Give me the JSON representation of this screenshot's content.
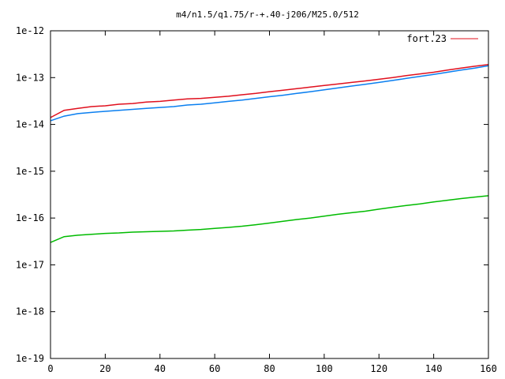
{
  "chart_data": {
    "type": "line",
    "title": "m4/n1.5/q1.75/r-+.40-j206/M25.0/512",
    "xlabel": "",
    "ylabel": "",
    "xlim": [
      0,
      160
    ],
    "ylim": [
      1e-19,
      1e-12
    ],
    "y_scale": "log",
    "grid": false,
    "legend_position": "top-right",
    "x_ticks": [
      0,
      20,
      40,
      60,
      80,
      100,
      120,
      140,
      160
    ],
    "x_tick_labels": [
      "0",
      "20",
      "40",
      "60",
      "80",
      "100",
      "120",
      "140",
      "160"
    ],
    "y_ticks": [
      1e-19,
      1e-18,
      1e-17,
      1e-16,
      1e-15,
      1e-14,
      1e-13,
      1e-12
    ],
    "y_tick_labels": [
      "1e-19",
      "1e-18",
      "1e-17",
      "1e-16",
      "1e-15",
      "1e-14",
      "1e-13",
      "1e-12"
    ],
    "series": [
      {
        "name": "fort.23",
        "color": "#e0101e",
        "legend": true,
        "x": [
          0,
          5,
          10,
          15,
          20,
          25,
          30,
          35,
          40,
          45,
          50,
          55,
          60,
          65,
          70,
          75,
          80,
          85,
          90,
          95,
          100,
          105,
          110,
          115,
          120,
          125,
          130,
          135,
          140,
          145,
          150,
          155,
          160
        ],
        "y": [
          1.4e-14,
          2e-14,
          2.2e-14,
          2.4e-14,
          2.5e-14,
          2.7e-14,
          2.8e-14,
          3e-14,
          3.1e-14,
          3.3e-14,
          3.5e-14,
          3.6e-14,
          3.8e-14,
          4e-14,
          4.3e-14,
          4.6e-14,
          5e-14,
          5.4e-14,
          5.8e-14,
          6.3e-14,
          6.8e-14,
          7.3e-14,
          7.9e-14,
          8.5e-14,
          9.2e-14,
          1e-13,
          1.1e-13,
          1.2e-13,
          1.3e-13,
          1.45e-13,
          1.6e-13,
          1.75e-13,
          1.9e-13
        ]
      },
      {
        "name": "",
        "color": "#0a7ff0",
        "legend": false,
        "x": [
          0,
          5,
          10,
          15,
          20,
          25,
          30,
          35,
          40,
          45,
          50,
          55,
          60,
          65,
          70,
          75,
          80,
          85,
          90,
          95,
          100,
          105,
          110,
          115,
          120,
          125,
          130,
          135,
          140,
          145,
          150,
          155,
          160
        ],
        "y": [
          1.2e-14,
          1.5e-14,
          1.7e-14,
          1.8e-14,
          1.9e-14,
          2e-14,
          2.1e-14,
          2.2e-14,
          2.3e-14,
          2.4e-14,
          2.6e-14,
          2.7e-14,
          2.9e-14,
          3.1e-14,
          3.3e-14,
          3.6e-14,
          3.9e-14,
          4.2e-14,
          4.6e-14,
          5e-14,
          5.5e-14,
          6e-14,
          6.6e-14,
          7.2e-14,
          7.9e-14,
          8.7e-14,
          9.6e-14,
          1.06e-13,
          1.17e-13,
          1.3e-13,
          1.45e-13,
          1.6e-13,
          1.8e-13
        ]
      },
      {
        "name": "",
        "color": "#00bb00",
        "legend": false,
        "x": [
          0,
          5,
          10,
          15,
          20,
          25,
          30,
          35,
          40,
          45,
          50,
          55,
          60,
          65,
          70,
          75,
          80,
          85,
          90,
          95,
          100,
          105,
          110,
          115,
          120,
          125,
          130,
          135,
          140,
          145,
          150,
          155,
          160
        ],
        "y": [
          3e-17,
          4e-17,
          4.3e-17,
          4.5e-17,
          4.7e-17,
          4.8e-17,
          5e-17,
          5.1e-17,
          5.2e-17,
          5.3e-17,
          5.5e-17,
          5.7e-17,
          6e-17,
          6.3e-17,
          6.7e-17,
          7.2e-17,
          7.8e-17,
          8.5e-17,
          9.3e-17,
          1e-16,
          1.1e-16,
          1.2e-16,
          1.3e-16,
          1.4e-16,
          1.55e-16,
          1.7e-16,
          1.85e-16,
          2e-16,
          2.2e-16,
          2.4e-16,
          2.6e-16,
          2.8e-16,
          3e-16
        ]
      }
    ]
  }
}
